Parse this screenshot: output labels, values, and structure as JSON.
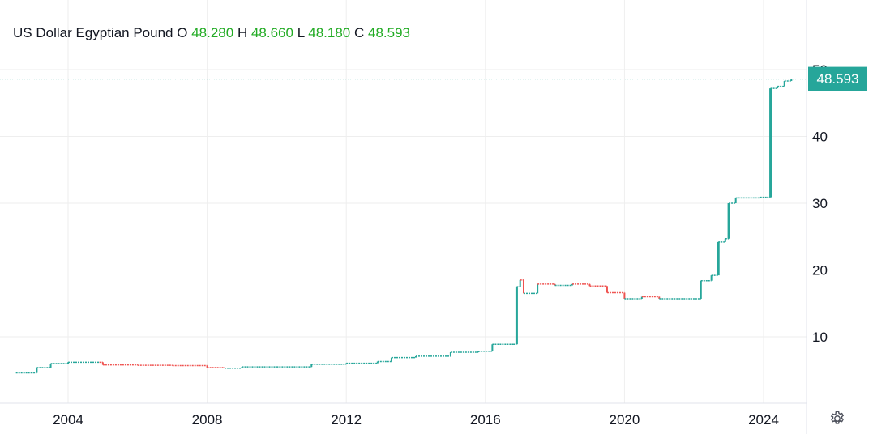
{
  "legend": {
    "title": "US Dollar Egyptian Pound",
    "o_label": "O",
    "o_value": "48.280",
    "h_label": "H",
    "h_value": "48.660",
    "l_label": "L",
    "l_value": "48.180",
    "c_label": "C",
    "c_value": "48.593"
  },
  "last_price_tag": "48.593",
  "colors": {
    "up": "#26a69a",
    "down": "#ef5350",
    "grid": "#eeeeee",
    "axis_text": "#131722",
    "legend_value": "#22ab24"
  },
  "settings_icon": "gear-icon",
  "chart_data": {
    "type": "candlestick",
    "title": "US Dollar Egyptian Pound",
    "y_ticks": [
      10,
      20,
      30,
      40,
      50
    ],
    "x_ticks": [
      "2004",
      "2008",
      "2012",
      "2016",
      "2020",
      "2024"
    ],
    "ylim": [
      0,
      50
    ],
    "y_axis_position": "right",
    "grid": true,
    "last_value": 48.593,
    "series": [
      {
        "t": 2002.5,
        "v": 4.6
      },
      {
        "t": 2003.0,
        "v": 4.6
      },
      {
        "t": 2003.1,
        "v": 5.4
      },
      {
        "t": 2003.5,
        "v": 6.0
      },
      {
        "t": 2004.0,
        "v": 6.2
      },
      {
        "t": 2004.9,
        "v": 6.2
      },
      {
        "t": 2005.0,
        "v": 5.8
      },
      {
        "t": 2006.0,
        "v": 5.75
      },
      {
        "t": 2007.0,
        "v": 5.7
      },
      {
        "t": 2008.0,
        "v": 5.4
      },
      {
        "t": 2008.5,
        "v": 5.3
      },
      {
        "t": 2009.0,
        "v": 5.5
      },
      {
        "t": 2010.0,
        "v": 5.5
      },
      {
        "t": 2011.0,
        "v": 5.9
      },
      {
        "t": 2012.0,
        "v": 6.05
      },
      {
        "t": 2012.9,
        "v": 6.3
      },
      {
        "t": 2013.3,
        "v": 6.9
      },
      {
        "t": 2014.0,
        "v": 7.1
      },
      {
        "t": 2015.0,
        "v": 7.7
      },
      {
        "t": 2015.8,
        "v": 7.85
      },
      {
        "t": 2016.2,
        "v": 8.88
      },
      {
        "t": 2016.8,
        "v": 8.88
      },
      {
        "t": 2016.9,
        "v": 17.5
      },
      {
        "t": 2017.0,
        "v": 18.5
      },
      {
        "t": 2017.1,
        "v": 16.5
      },
      {
        "t": 2017.5,
        "v": 17.9
      },
      {
        "t": 2018.0,
        "v": 17.7
      },
      {
        "t": 2018.5,
        "v": 17.9
      },
      {
        "t": 2019.0,
        "v": 17.6
      },
      {
        "t": 2019.5,
        "v": 16.6
      },
      {
        "t": 2020.0,
        "v": 15.7
      },
      {
        "t": 2020.5,
        "v": 16.0
      },
      {
        "t": 2021.0,
        "v": 15.7
      },
      {
        "t": 2021.9,
        "v": 15.7
      },
      {
        "t": 2022.2,
        "v": 18.4
      },
      {
        "t": 2022.5,
        "v": 19.2
      },
      {
        "t": 2022.7,
        "v": 24.2
      },
      {
        "t": 2022.9,
        "v": 24.7
      },
      {
        "t": 2023.0,
        "v": 30.0
      },
      {
        "t": 2023.2,
        "v": 30.8
      },
      {
        "t": 2023.9,
        "v": 30.9
      },
      {
        "t": 2024.1,
        "v": 30.9
      },
      {
        "t": 2024.2,
        "v": 47.2
      },
      {
        "t": 2024.4,
        "v": 47.5
      },
      {
        "t": 2024.6,
        "v": 48.3
      },
      {
        "t": 2024.8,
        "v": 48.593
      }
    ]
  }
}
